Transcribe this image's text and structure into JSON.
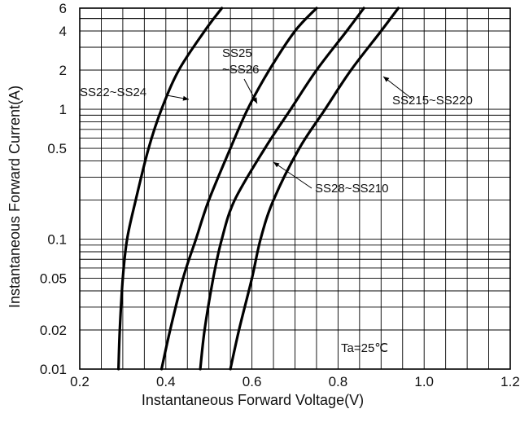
{
  "chart_data": {
    "type": "line",
    "title": "",
    "xlabel": "Instantaneous Forward Voltage(V)",
    "ylabel": "Instantaneous Forward Current(A)",
    "xlim": [
      0.2,
      1.2
    ],
    "ylim": [
      0.01,
      6
    ],
    "y_scale": "log",
    "grid": true,
    "x_ticks": [
      0.2,
      0.4,
      0.6,
      0.8,
      1.0,
      1.2
    ],
    "x_tick_labels": [
      "0.2",
      "0.4",
      "0.6",
      "0.8",
      "1.0",
      "1.2"
    ],
    "y_ticks": [
      0.01,
      0.02,
      0.05,
      0.1,
      0.5,
      1,
      2,
      4,
      6
    ],
    "y_tick_labels": [
      "0.01",
      "0.02",
      "0.05",
      "0.1",
      "0.5",
      "1",
      "2",
      "4",
      "6"
    ],
    "annotation": "Ta=25℃",
    "series": [
      {
        "name": "SS22~SS24",
        "label_lines": [
          "SS22~SS24"
        ],
        "color": "#000000",
        "points": [
          [
            0.29,
            0.01
          ],
          [
            0.293,
            0.02
          ],
          [
            0.3,
            0.05
          ],
          [
            0.31,
            0.1
          ],
          [
            0.33,
            0.2
          ],
          [
            0.36,
            0.5
          ],
          [
            0.39,
            1.0
          ],
          [
            0.43,
            2.0
          ],
          [
            0.49,
            4.0
          ],
          [
            0.53,
            6.0
          ]
        ]
      },
      {
        "name": "SS25~SS26",
        "label_lines": [
          "SS25",
          "~SS26"
        ],
        "color": "#000000",
        "points": [
          [
            0.39,
            0.01
          ],
          [
            0.41,
            0.02
          ],
          [
            0.44,
            0.05
          ],
          [
            0.47,
            0.1
          ],
          [
            0.5,
            0.2
          ],
          [
            0.55,
            0.5
          ],
          [
            0.59,
            1.0
          ],
          [
            0.64,
            2.0
          ],
          [
            0.7,
            4.0
          ],
          [
            0.75,
            6.0
          ]
        ]
      },
      {
        "name": "SS28~SS210",
        "label_lines": [
          "SS28~SS210"
        ],
        "color": "#000000",
        "points": [
          [
            0.48,
            0.01
          ],
          [
            0.49,
            0.02
          ],
          [
            0.51,
            0.05
          ],
          [
            0.53,
            0.1
          ],
          [
            0.56,
            0.2
          ],
          [
            0.63,
            0.5
          ],
          [
            0.69,
            1.0
          ],
          [
            0.75,
            2.0
          ],
          [
            0.82,
            4.0
          ],
          [
            0.86,
            6.0
          ]
        ]
      },
      {
        "name": "SS215~SS220",
        "label_lines": [
          "SS215~SS220"
        ],
        "color": "#000000",
        "points": [
          [
            0.55,
            0.01
          ],
          [
            0.57,
            0.02
          ],
          [
            0.6,
            0.05
          ],
          [
            0.62,
            0.1
          ],
          [
            0.65,
            0.2
          ],
          [
            0.71,
            0.5
          ],
          [
            0.77,
            1.0
          ],
          [
            0.83,
            2.0
          ],
          [
            0.9,
            4.0
          ],
          [
            0.94,
            6.0
          ]
        ]
      }
    ]
  }
}
